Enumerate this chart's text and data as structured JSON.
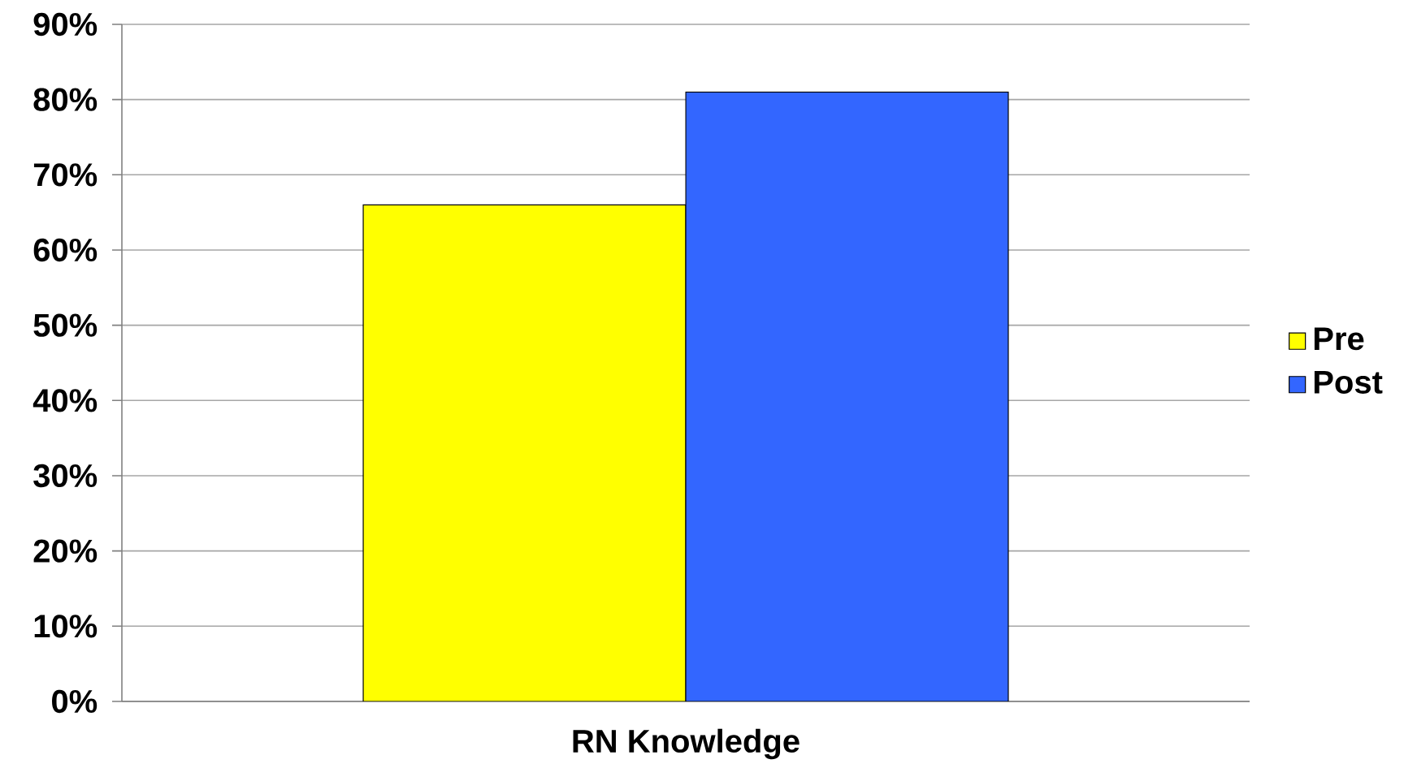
{
  "chart_data": {
    "type": "bar",
    "categories": [
      "RN Knowledge"
    ],
    "series": [
      {
        "name": "Pre",
        "color": "#ffff00",
        "values": [
          66
        ]
      },
      {
        "name": "Post",
        "color": "#3366ff",
        "values": [
          81
        ]
      }
    ],
    "ylim": [
      0,
      90
    ],
    "yticks": [
      {
        "value": 0,
        "label": "0%"
      },
      {
        "value": 10,
        "label": "10%"
      },
      {
        "value": 20,
        "label": "20%"
      },
      {
        "value": 30,
        "label": "30%"
      },
      {
        "value": 40,
        "label": "40%"
      },
      {
        "value": 50,
        "label": "50%"
      },
      {
        "value": 60,
        "label": "60%"
      },
      {
        "value": 70,
        "label": "70%"
      },
      {
        "value": 80,
        "label": "80%"
      },
      {
        "value": 90,
        "label": "90%"
      }
    ],
    "grid": "y",
    "legend": "right"
  }
}
